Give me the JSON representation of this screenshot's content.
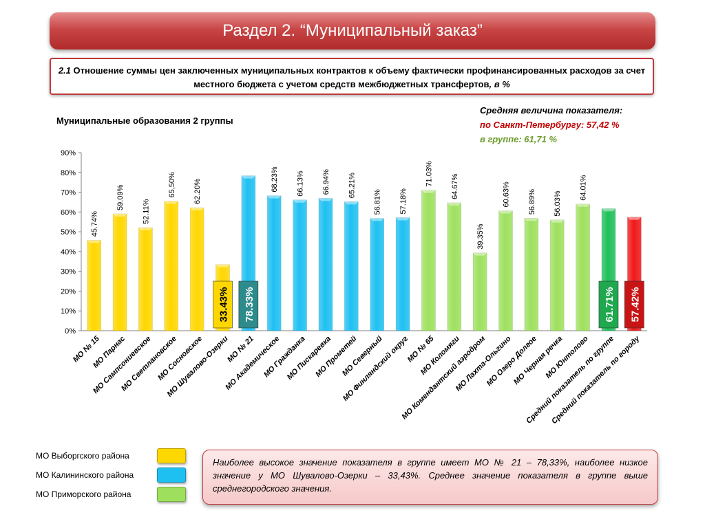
{
  "header": {
    "title": "Раздел 2. “Муниципальный заказ”"
  },
  "subtitle": {
    "number": "2.1",
    "text": " Отношение суммы цен заключенных муниципальных контрактов к объему фактически профинансированных расходов за счет местного бюджета с учетом средств межбюджетных трансфертов",
    "unit": ", в %"
  },
  "group_label": "Муниципальные образования 2 группы",
  "averages": {
    "title": "Средняя величина показателя:",
    "spb": "по Санкт-Петербургу:  57,42 %",
    "group": "в группе:  61,71 %"
  },
  "colors": {
    "vyborg": "#ffd700",
    "kalinin": "#1ec0f2",
    "primorsky": "#9ee05e",
    "group_avg": "#1fbf5a",
    "city_avg": "#f01818"
  },
  "chart_data": {
    "type": "bar",
    "ylim": [
      0,
      90
    ],
    "yticks": [
      "0%",
      "10%",
      "20%",
      "30%",
      "40%",
      "50%",
      "60%",
      "70%",
      "80%",
      "90%"
    ],
    "categories": [
      "МО № 15",
      "МО Парнас",
      "МО Сампсониевское",
      "МО Светлановское",
      "МО Сосновское",
      "МО Шувалово-Озерки",
      "МО № 21",
      "МО Академическое",
      "МО Гражданка",
      "МО Пискаревка",
      "МО Прометей",
      "МО Северный",
      "МО Финляндский округ",
      "МО № 65",
      "МО Коломяги",
      "МО Комендантский аэродром",
      "МО Лахта-Ольгино",
      "МО Озеро Долгое",
      "МО Черная речка",
      "МО Юнтолово",
      "Средний показатель по группе",
      "Средний показатель по городу"
    ],
    "values": [
      45.74,
      59.09,
      52.11,
      65.5,
      62.2,
      33.43,
      78.33,
      68.23,
      66.13,
      66.94,
      65.21,
      56.81,
      57.18,
      71.03,
      64.67,
      39.35,
      60.63,
      56.89,
      56.03,
      64.01,
      61.71,
      57.42
    ],
    "labels": [
      "45.74%",
      "59.09%",
      "52.11%",
      "65,50%",
      "62.20%",
      "33.43%",
      "78.33%",
      "68.23%",
      "66.13%",
      "66.94%",
      "65.21%",
      "56.81%",
      "57.18%",
      "71.03%",
      "64.67%",
      "39.35%",
      "60.63%",
      "56.89%",
      "56.03%",
      "64.01%",
      "61.71%",
      "57.42%"
    ],
    "groups": [
      "vyborg",
      "vyborg",
      "vyborg",
      "vyborg",
      "vyborg",
      "vyborg",
      "kalinin",
      "kalinin",
      "kalinin",
      "kalinin",
      "kalinin",
      "kalinin",
      "kalinin",
      "primorsky",
      "primorsky",
      "primorsky",
      "primorsky",
      "primorsky",
      "primorsky",
      "primorsky",
      "group_avg",
      "city_avg"
    ],
    "highlighted": [
      5,
      6,
      20,
      21
    ],
    "grid": false
  },
  "legend": [
    {
      "label": "МО Выборгского района",
      "group": "vyborg"
    },
    {
      "label": "МО Калининского  района",
      "group": "kalinin"
    },
    {
      "label": "МО Приморского района",
      "group": "primorsky"
    }
  ],
  "summary": "Наиболее высокое значение показателя в группе имеет МО № 21 – 78,33%, наиболее низкое значение у МО Шувалово-Озерки – 33,43%. Среднее значение показателя в группе выше среднегородского значения."
}
